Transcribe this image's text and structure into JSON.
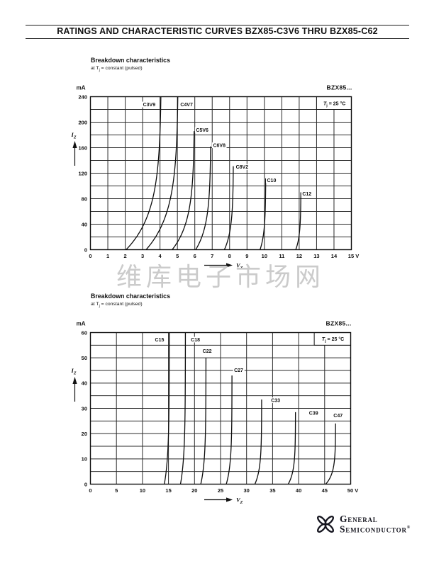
{
  "header": {
    "title": "RATINGS AND CHARACTERISTIC CURVES BZX85-C3V6 THRU BZX85-C62"
  },
  "watermark": {
    "text": "维库电子市场网"
  },
  "footer": {
    "brand_top": "General",
    "brand_bottom": "Semiconductor",
    "registered": "®"
  },
  "chart_data": [
    {
      "type": "line",
      "title": "Breakdown characteristics",
      "subtitle_parts": [
        "at T",
        "j",
        " =  constant (pulsed)"
      ],
      "unit": "mA",
      "part_label": "BZX85...",
      "condition": {
        "symbol": "T",
        "sub": "j",
        "rest": "= 25 °C"
      },
      "condition_box": {
        "v0": 13,
        "v1": 15,
        "i0": 220,
        "i1": 240
      },
      "x_axis": {
        "symbol": "V",
        "sub": "Z",
        "min": 0,
        "max": 15,
        "grid_step": 1,
        "tick_step": 1,
        "unit_suffix": " V"
      },
      "y_axis": {
        "symbol": "I",
        "sub": "Z",
        "min": 0,
        "max": 240,
        "grid_step": 20,
        "tick_step": 40
      },
      "curve_sharpness": 4.2,
      "series": [
        {
          "name": "C3V9",
          "v_start": 2.05,
          "v_z": 4.08,
          "i_max": 240,
          "label_v": 3.02,
          "label_i": 225
        },
        {
          "name": "C4V7",
          "v_start": 3.2,
          "v_z": 5.05,
          "i_max": 240,
          "label_v": 5.17,
          "label_i": 225
        },
        {
          "name": "C5V6",
          "v_start": 4.7,
          "v_z": 5.98,
          "i_max": 186,
          "label_v": 6.07,
          "label_i": 185
        },
        {
          "name": "C6V8",
          "v_start": 6.05,
          "v_z": 6.92,
          "i_max": 162,
          "label_v": 7.05,
          "label_i": 161
        },
        {
          "name": "C8V2",
          "v_start": 7.7,
          "v_z": 8.22,
          "i_max": 131,
          "label_v": 8.36,
          "label_i": 127
        },
        {
          "name": "C10",
          "v_start": 9.75,
          "v_z": 10.08,
          "i_max": 112,
          "label_v": 10.15,
          "label_i": 106
        },
        {
          "name": "C12",
          "v_start": 11.8,
          "v_z": 12.1,
          "i_max": 90,
          "label_v": 12.18,
          "label_i": 85
        }
      ]
    },
    {
      "type": "line",
      "title": "Breakdown characteristics",
      "subtitle_parts": [
        "at T",
        "j",
        " =  constant (pulsed)"
      ],
      "unit": "mA",
      "part_label": "BZX85...",
      "condition": {
        "symbol": "T",
        "sub": "j",
        "rest": "= 25 °C"
      },
      "condition_box": {
        "v0": 43,
        "v1": 50,
        "i0": 55,
        "i1": 60
      },
      "x_axis": {
        "symbol": "V",
        "sub": "Z",
        "min": 0,
        "max": 50,
        "grid_step": 5,
        "tick_step": 5,
        "unit_suffix": " V"
      },
      "y_axis": {
        "symbol": "I",
        "sub": "Z",
        "min": 0,
        "max": 60,
        "grid_step": 5,
        "tick_step": 10
      },
      "curve_sharpness": 5.5,
      "series": [
        {
          "name": "C15",
          "v_start": 14.2,
          "v_z": 15.15,
          "i_max": 60,
          "label_v": 12.4,
          "label_i": 56.5
        },
        {
          "name": "C18",
          "v_start": 17.3,
          "v_z": 18.25,
          "i_max": 60,
          "label_v": 19.3,
          "label_i": 56.5
        },
        {
          "name": "C22",
          "v_start": 21.2,
          "v_z": 22.2,
          "i_max": 50,
          "label_v": 21.55,
          "label_i": 52
        },
        {
          "name": "C27",
          "v_start": 26.1,
          "v_z": 27.2,
          "i_max": 43,
          "label_v": 27.6,
          "label_i": 44.5
        },
        {
          "name": "C33",
          "v_start": 31.6,
          "v_z": 32.9,
          "i_max": 33.5,
          "label_v": 34.7,
          "label_i": 32.5
        },
        {
          "name": "C39",
          "v_start": 38.0,
          "v_z": 39.4,
          "i_max": 28.5,
          "label_v": 42.0,
          "label_i": 27.5
        },
        {
          "name": "C47",
          "v_start": 45.2,
          "v_z": 47.1,
          "i_max": 24,
          "label_v": 46.7,
          "label_i": 26.5
        }
      ]
    }
  ]
}
